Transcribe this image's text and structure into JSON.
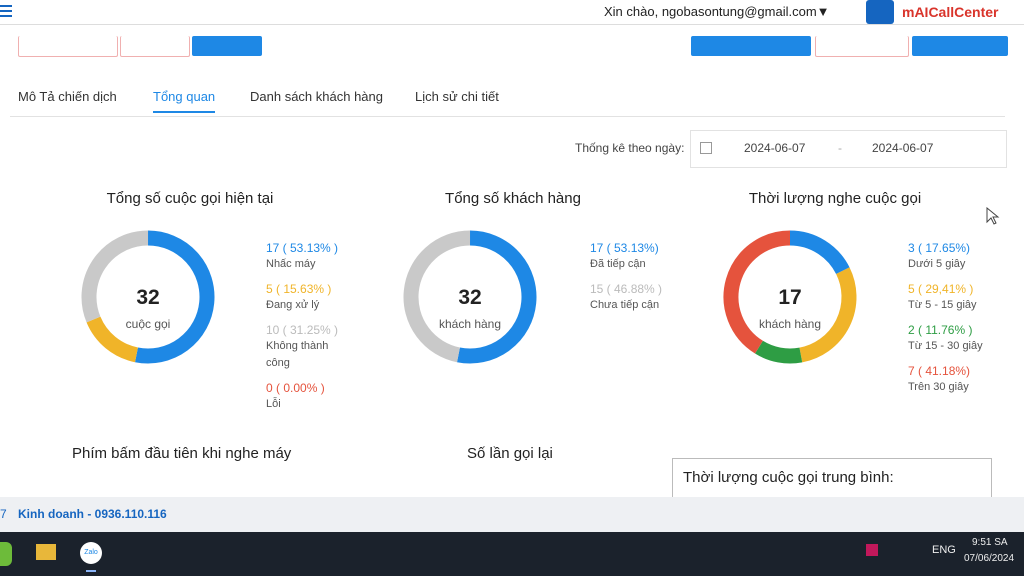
{
  "header": {
    "greeting": "Xin chào, ngobasontung@gmail.com▼",
    "brand": "mAICallCenter"
  },
  "tabs": [
    "Mô Tả chiến dịch",
    "Tổng quan",
    "Danh sách khách hàng",
    "Lịch sử chi tiết"
  ],
  "active_tab": 1,
  "filter": {
    "label": "Thống kê theo ngày:",
    "from": "2024-06-07",
    "separator": "-",
    "to": "2024-06-07"
  },
  "chart_data": [
    {
      "type": "donut",
      "title": "Tổng số cuộc gọi hiện tại",
      "total": 32,
      "total_label": "cuộc gọi",
      "items": [
        {
          "value": 17,
          "percent": 53.13,
          "value_label": "17 ( 53.13% )",
          "label": "Nhấc máy",
          "color": "#1e88e5"
        },
        {
          "value": 5,
          "percent": 15.63,
          "value_label": "5 ( 15.63% )",
          "label": "Đang xử lý",
          "color": "#f0b429"
        },
        {
          "value": 10,
          "percent": 31.25,
          "value_label": "10 ( 31.25% )",
          "label": "Không thành công",
          "color": "#c9c9c9"
        },
        {
          "value": 0,
          "percent": 0.0,
          "value_label": "0 ( 0.00% )",
          "label": "Lỗi",
          "color": "#e5533d"
        }
      ]
    },
    {
      "type": "donut",
      "title": "Tổng số khách hàng",
      "total": 32,
      "total_label": "khách hàng",
      "items": [
        {
          "value": 17,
          "percent": 53.13,
          "value_label": "17 ( 53.13%)",
          "label": "Đã tiếp cận",
          "color": "#1e88e5"
        },
        {
          "value": 15,
          "percent": 46.88,
          "value_label": "15 ( 46.88% )",
          "label": "Chưa tiếp cận",
          "color": "#c9c9c9"
        }
      ]
    },
    {
      "type": "donut",
      "title": "Thời lượng nghe cuộc gọi",
      "total": 17,
      "total_label": "khách hàng",
      "items": [
        {
          "value": 3,
          "percent": 17.65,
          "value_label": "3 ( 17.65%)",
          "label": "Dưới 5 giây",
          "color": "#1e88e5"
        },
        {
          "value": 5,
          "percent": 29.41,
          "value_label": "5 ( 29,41% )",
          "label": "Từ 5 - 15 giây",
          "color": "#f0b429"
        },
        {
          "value": 2,
          "percent": 11.76,
          "value_label": "2 ( 11.76% )",
          "label": "Từ 15 - 30 giây",
          "color": "#2e9d44"
        },
        {
          "value": 7,
          "percent": 41.18,
          "value_label": "7 ( 41.18%)",
          "label": "Trên 30 giây",
          "color": "#e5533d"
        }
      ]
    }
  ],
  "sections": [
    "Phím bấm đầu tiên khi nghe máy",
    "Số lần gọi lại",
    "Thời lượng cuộc gọi trung bình:"
  ],
  "footer": {
    "prefix": "7",
    "contact": "Kinh doanh - 0936.110.116"
  },
  "taskbar": {
    "app": "Zalo",
    "language": "ENG",
    "time": "9:51 SA",
    "date": "07/06/2024"
  }
}
